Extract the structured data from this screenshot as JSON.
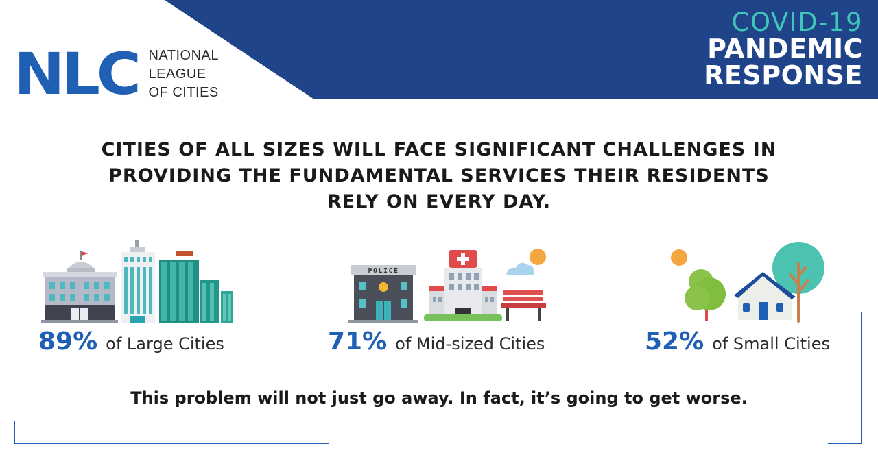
{
  "header": {
    "logo_mark": "NLC",
    "logo_text": [
      "NATIONAL",
      "LEAGUE",
      "OF CITIES"
    ],
    "badge": {
      "line1": "COVID-19",
      "line2": "PANDEMIC",
      "line3": "RESPONSE"
    },
    "colors": {
      "band": "#1f4489",
      "brand_blue": "#1f5fb4",
      "teal": "#3fc6b8"
    }
  },
  "headline": [
    "CITIES OF ALL SIZES WILL FACE SIGNIFICANT CHALLENGES IN",
    "PROVIDING THE FUNDAMENTAL SERVICES THEIR RESIDENTS",
    "RELY ON EVERY DAY."
  ],
  "stats": [
    {
      "value": "89%",
      "label": "of Large Cities",
      "icon": "large-city-buildings-icon"
    },
    {
      "value": "71%",
      "label": "of Mid-sized Cities",
      "icon": "mid-sized-city-icon"
    },
    {
      "value": "52%",
      "label": "of Small Cities",
      "icon": "small-city-house-icon"
    }
  ],
  "illustrations": {
    "police_sign": "POLICE"
  },
  "closing": "This problem will not just go away. In fact, it’s going to get worse."
}
